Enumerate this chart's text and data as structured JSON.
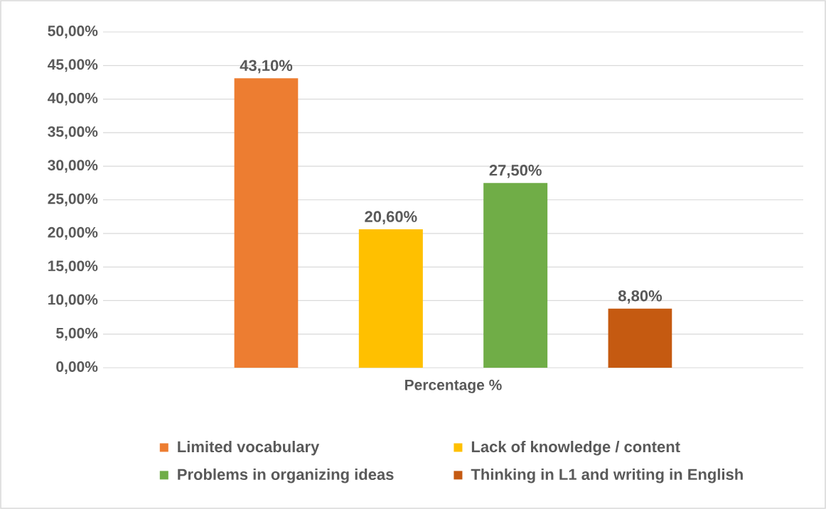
{
  "chart_data": {
    "type": "bar",
    "xlabel": "Percentage %",
    "categories": [
      null
    ],
    "series": [
      {
        "name": "Limited vocabulary",
        "color": "#ed7d31",
        "values": [
          43.1
        ],
        "value_labels": [
          "43,10%"
        ]
      },
      {
        "name": "Lack of knowledge / content",
        "color": "#ffc000",
        "values": [
          20.6
        ],
        "value_labels": [
          "20,60%"
        ]
      },
      {
        "name": "Problems in organizing ideas",
        "color": "#70ad47",
        "values": [
          27.5
        ],
        "value_labels": [
          "27,50%"
        ]
      },
      {
        "name": "Thinking in L1 and writing in English",
        "color": "#c55a11",
        "values": [
          8.8
        ],
        "value_labels": [
          "8,80%"
        ]
      }
    ],
    "ylim": [
      0,
      50
    ],
    "yticks": [
      {
        "value": 0,
        "label": "0,00%"
      },
      {
        "value": 5,
        "label": "5,00%"
      },
      {
        "value": 10,
        "label": "10,00%"
      },
      {
        "value": 15,
        "label": "15,00%"
      },
      {
        "value": 20,
        "label": "20,00%"
      },
      {
        "value": 25,
        "label": "25,00%"
      },
      {
        "value": 30,
        "label": "30,00%"
      },
      {
        "value": 35,
        "label": "35,00%"
      },
      {
        "value": 40,
        "label": "40,00%"
      },
      {
        "value": 45,
        "label": "45,00%"
      },
      {
        "value": 50,
        "label": "50,00%"
      }
    ],
    "grid": "y",
    "legend": "bottom"
  }
}
